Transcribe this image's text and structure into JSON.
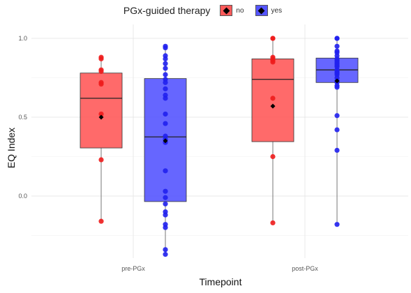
{
  "chart_data": {
    "type": "box",
    "xlabel": "Timepoint",
    "ylabel": "EQ Index",
    "categories": [
      "pre-PGx",
      "post-PGx"
    ],
    "ylim": [
      -0.4,
      1.05
    ],
    "yticks": [
      0.0,
      0.5,
      1.0
    ],
    "ytick_labels": [
      "0.0",
      "0.5",
      "1.0"
    ],
    "grid": true,
    "legend": {
      "title": "PGx-guided therapy",
      "position": "top"
    },
    "series": [
      {
        "name": "no",
        "color": "#ff5a5a",
        "point_color": "#ee1c1c",
        "boxes": [
          {
            "category": "pre-PGx",
            "min": -0.16,
            "q1": 0.305,
            "median": 0.62,
            "q3": 0.78,
            "max": 0.88,
            "mean": 0.5,
            "points": [
              0.88,
              0.87,
              0.8,
              0.79,
              0.72,
              0.71,
              0.52,
              0.23,
              -0.16
            ]
          },
          {
            "category": "post-PGx",
            "min": -0.17,
            "q1": 0.345,
            "median": 0.74,
            "q3": 0.87,
            "max": 1.0,
            "mean": 0.57,
            "points": [
              1.0,
              1.0,
              0.88,
              0.87,
              0.86,
              0.85,
              0.62,
              0.25,
              -0.17
            ]
          }
        ]
      },
      {
        "name": "yes",
        "color": "#5555ff",
        "point_color": "#2020ee",
        "boxes": [
          {
            "category": "pre-PGx",
            "min": -0.37,
            "q1": -0.035,
            "median": 0.375,
            "q3": 0.745,
            "max": 0.95,
            "mean": 0.35,
            "points": [
              0.95,
              0.94,
              0.89,
              0.87,
              0.84,
              0.81,
              0.77,
              0.74,
              0.72,
              0.68,
              0.64,
              0.62,
              0.52,
              0.46,
              0.38,
              0.36,
              0.34,
              0.16,
              0.03,
              -0.01,
              -0.05,
              -0.1,
              -0.12,
              -0.18,
              -0.2,
              -0.34,
              -0.37
            ]
          },
          {
            "category": "post-PGx",
            "min": -0.18,
            "q1": 0.72,
            "median": 0.8,
            "q3": 0.875,
            "max": 1.0,
            "mean": 0.73,
            "points": [
              1.0,
              1.0,
              0.95,
              0.92,
              0.91,
              0.89,
              0.87,
              0.86,
              0.85,
              0.84,
              0.83,
              0.82,
              0.8,
              0.79,
              0.78,
              0.77,
              0.75,
              0.73,
              0.72,
              0.7,
              0.69,
              0.51,
              0.42,
              0.29,
              -0.18
            ]
          }
        ]
      }
    ]
  }
}
